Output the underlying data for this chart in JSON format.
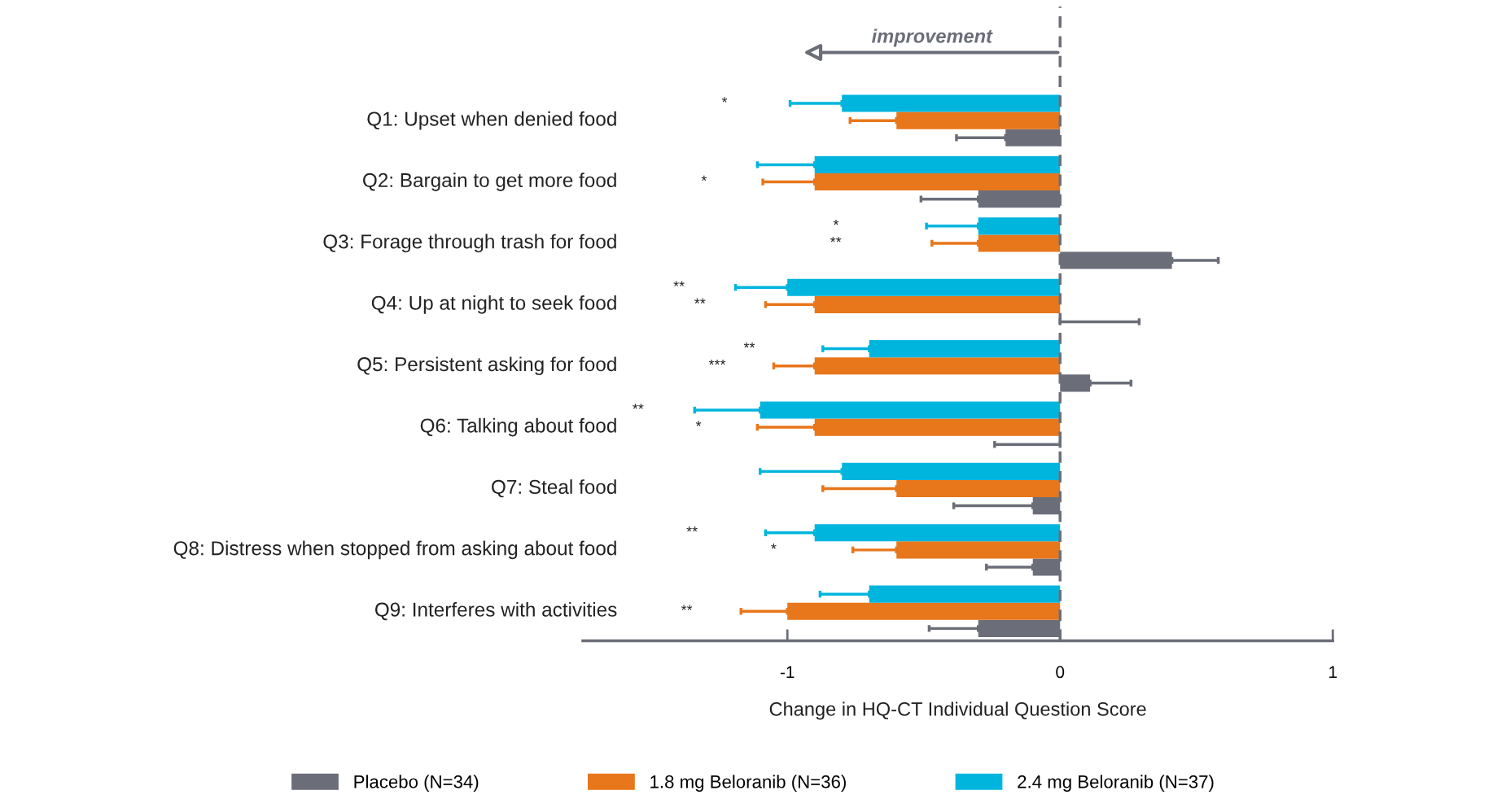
{
  "chart_data": {
    "type": "bar",
    "orientation": "horizontal",
    "xlabel": "Change in HQ-CT Individual Question Score",
    "categories": [
      "Q1: Upset when denied food",
      "Q2: Bargain to get more food",
      "Q3: Forage through trash for food",
      "Q4: Up at night to seek food",
      "Q5: Persistent asking for food",
      "Q6: Talking about food",
      "Q7: Steal food",
      "Q8: Distress when stopped from asking about food",
      "Q9: Interferes with activities"
    ],
    "series": [
      {
        "name": "Placebo (N=34)",
        "color": "#6b6e78",
        "values": [
          -0.2,
          -0.3,
          0.41,
          0,
          0.11,
          0,
          -0.1,
          -0.1,
          -0.3
        ],
        "errors": [
          [
            -0.38,
            -0.2
          ],
          [
            -0.51,
            -0.3
          ],
          [
            0.41,
            0.58
          ],
          [
            0,
            0.29
          ],
          [
            0.11,
            0.26
          ],
          [
            -0.24,
            0
          ],
          [
            -0.39,
            -0.1
          ],
          [
            -0.27,
            -0.1
          ],
          [
            -0.48,
            -0.3
          ]
        ]
      },
      {
        "name": "1.8 mg Beloranib (N=36)",
        "color": "#e8761b",
        "values": [
          -0.6,
          -0.9,
          -0.3,
          -0.9,
          -0.9,
          -0.9,
          -0.6,
          -0.6,
          -1.0
        ],
        "errors": [
          [
            -0.77,
            -0.6
          ],
          [
            -1.09,
            -0.9
          ],
          [
            -0.47,
            -0.3
          ],
          [
            -1.08,
            -0.9
          ],
          [
            -1.05,
            -0.9
          ],
          [
            -1.11,
            -0.9
          ],
          [
            -0.87,
            -0.6
          ],
          [
            -0.76,
            -0.6
          ],
          [
            -1.17,
            -1.0
          ]
        ]
      },
      {
        "name": "2.4 mg Beloranib (N=37)",
        "color": "#00b5dd",
        "values": [
          -0.8,
          -0.9,
          -0.3,
          -1.0,
          -0.7,
          -1.1,
          -0.8,
          -0.9,
          -0.7
        ],
        "errors": [
          [
            -0.99,
            -0.8
          ],
          [
            -1.11,
            -0.9
          ],
          [
            -0.49,
            -0.3
          ],
          [
            -1.19,
            -1.0
          ],
          [
            -0.87,
            -0.7
          ],
          [
            -1.34,
            -1.1
          ],
          [
            -1.1,
            -0.8
          ],
          [
            -1.08,
            -0.9
          ],
          [
            -0.88,
            -0.7
          ]
        ]
      }
    ],
    "xlim": [
      -1.75,
      1.0
    ],
    "xticks": [
      -1,
      0,
      1
    ],
    "ref_lines": [
      {
        "axis": "x",
        "value": 0,
        "color": "#6b6e78",
        "line_style": "dashed"
      }
    ],
    "annotations": [
      "improvement",
      "*",
      "*",
      "*",
      "**",
      "**",
      "**",
      "**",
      "***",
      "**",
      "*",
      "**",
      "*",
      "**"
    ],
    "legend": "bottom",
    "grid": false
  }
}
